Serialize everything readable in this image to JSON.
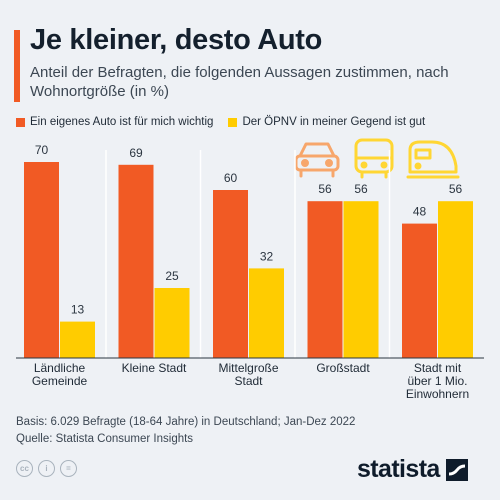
{
  "header": {
    "title": "Je kleiner, desto Auto",
    "subtitle": "Anteil der Befragten, die folgenden Aussagen zustimmen, nach Wohnortgröße (in %)"
  },
  "legend": [
    {
      "label": "Ein eigenes Auto ist für mich wichtig",
      "color": "#f15a24"
    },
    {
      "label": "Der ÖPNV in meiner Gegend ist gut",
      "color": "#ffcc00"
    }
  ],
  "icons": [
    "car-icon",
    "bus-icon",
    "train-icon"
  ],
  "chart_data": {
    "type": "bar",
    "categories": [
      [
        "Ländliche",
        "Gemeinde"
      ],
      [
        "Kleine Stadt"
      ],
      [
        "Mittelgroße",
        "Stadt"
      ],
      [
        "Großstadt"
      ],
      [
        "Stadt mit",
        "über 1 Mio.",
        "Einwohnern"
      ]
    ],
    "series": [
      {
        "name": "Ein eigenes Auto ist für mich wichtig",
        "color": "#f15a24",
        "values": [
          70,
          69,
          60,
          56,
          48
        ]
      },
      {
        "name": "Der ÖPNV in meiner Gegend ist gut",
        "color": "#ffcc00",
        "values": [
          13,
          25,
          32,
          56,
          56
        ]
      }
    ],
    "ylim": [
      0,
      70
    ],
    "grid": false,
    "legend_position": "top-left"
  },
  "footer": {
    "basis": "Basis: 6.029 Befragte (18-64 Jahre) in Deutschland; Jan-Dez 2022",
    "source": "Quelle: Statista Consumer Insights",
    "brand": "statista",
    "license_icons": [
      "cc",
      "i",
      "="
    ]
  }
}
